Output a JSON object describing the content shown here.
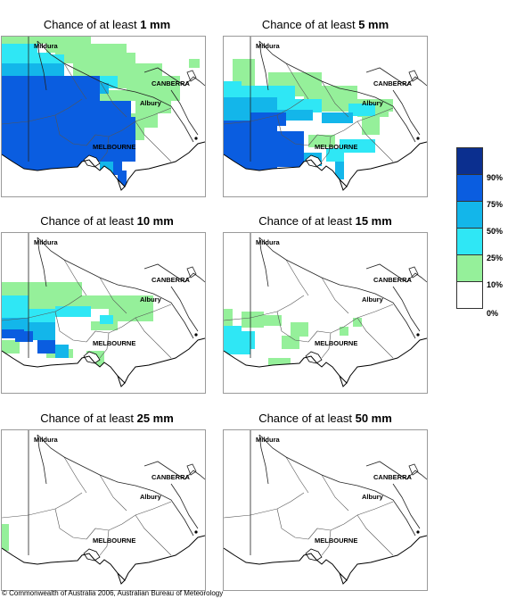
{
  "panels": [
    {
      "title_prefix": "Chance of at least ",
      "amount": "1 mm",
      "cells": "p1"
    },
    {
      "title_prefix": "Chance of at least ",
      "amount": "5 mm",
      "cells": "p2"
    },
    {
      "title_prefix": "Chance of at least ",
      "amount": "10 mm",
      "cells": "p3"
    },
    {
      "title_prefix": "Chance of at least ",
      "amount": "15 mm",
      "cells": "p4"
    },
    {
      "title_prefix": "Chance of at least ",
      "amount": "25 mm",
      "cells": "p5"
    },
    {
      "title_prefix": "Chance of at least ",
      "amount": "50 mm",
      "cells": "p6"
    }
  ],
  "places": {
    "mildura": "Mildura",
    "canberra": "CANBERRA",
    "albury": "Albury",
    "melbourne": "MELBOURNE"
  },
  "legend": {
    "labels": [
      "90%",
      "75%",
      "50%",
      "25%",
      "10%",
      "0%"
    ],
    "colors": [
      "#0b2f8f",
      "#0a5de0",
      "#13b6ea",
      "#2fe7f5",
      "#95f09a",
      "#ffffff"
    ]
  },
  "footer": "© Commonwealth of Australia 2006, Australian Bureau of Meteorology"
}
